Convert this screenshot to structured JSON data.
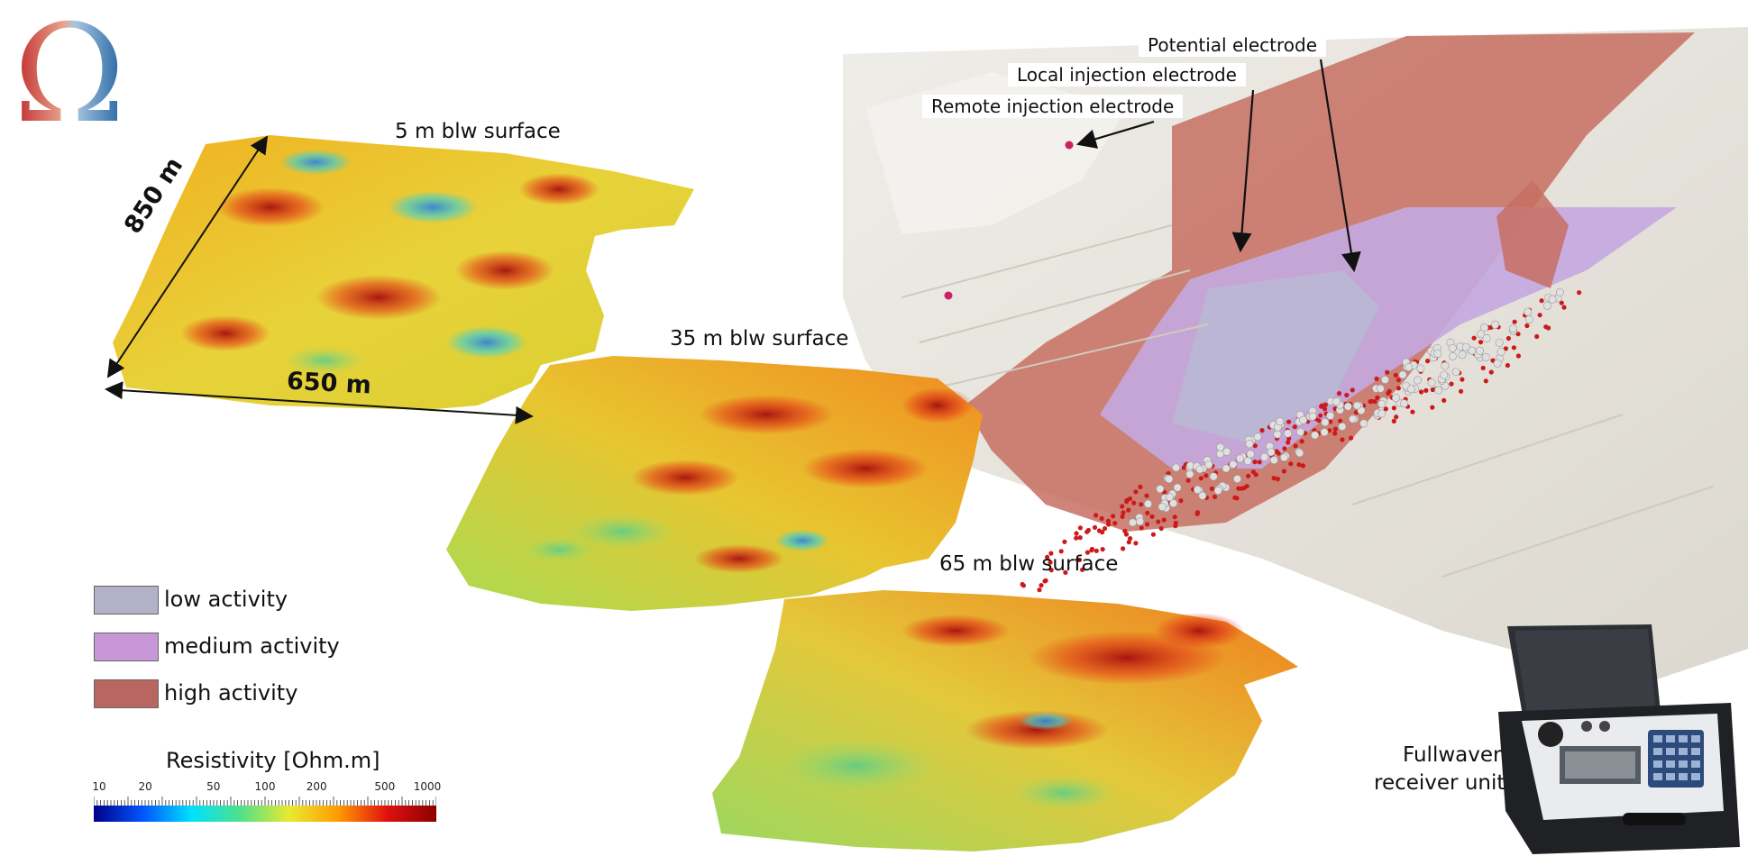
{
  "logo": {
    "glyph": "Ω"
  },
  "depth_maps": [
    {
      "label": "5 m blw surface"
    },
    {
      "label": "35 m blw surface"
    },
    {
      "label": "65 m blw surface"
    }
  ],
  "dimensions": {
    "width_label": "850 m",
    "length_label": "650 m"
  },
  "callouts": {
    "potential": "Potential electrode",
    "local_injection": "Local injection electrode",
    "remote_injection": "Remote injection electrode"
  },
  "legend": {
    "items": [
      {
        "label": "low activity",
        "color": "#b3b1c8"
      },
      {
        "label": "medium activity",
        "color": "#c797d8"
      },
      {
        "label": "high activity",
        "color": "#b8665f"
      }
    ]
  },
  "colorbar": {
    "title": "Resistivity [Ohm.m]",
    "scale": "log",
    "range": [
      10,
      1000
    ],
    "ticks": [
      "10",
      "20",
      "50",
      "100",
      "200",
      "500",
      "1000"
    ],
    "colors": [
      "#00008b",
      "#0055ff",
      "#00e0ff",
      "#50e08a",
      "#e8ea30",
      "#ff9a00",
      "#e01010",
      "#8b0000"
    ]
  },
  "instrument": {
    "label_line1": "Fullwaver",
    "label_line2": "receiver unit"
  },
  "colors": {
    "electrode_potential": "#e0e0e0",
    "electrode_injection": "#cc1a1a",
    "remote_marker": "#cc2060",
    "terrain": "#e7e4dd"
  }
}
